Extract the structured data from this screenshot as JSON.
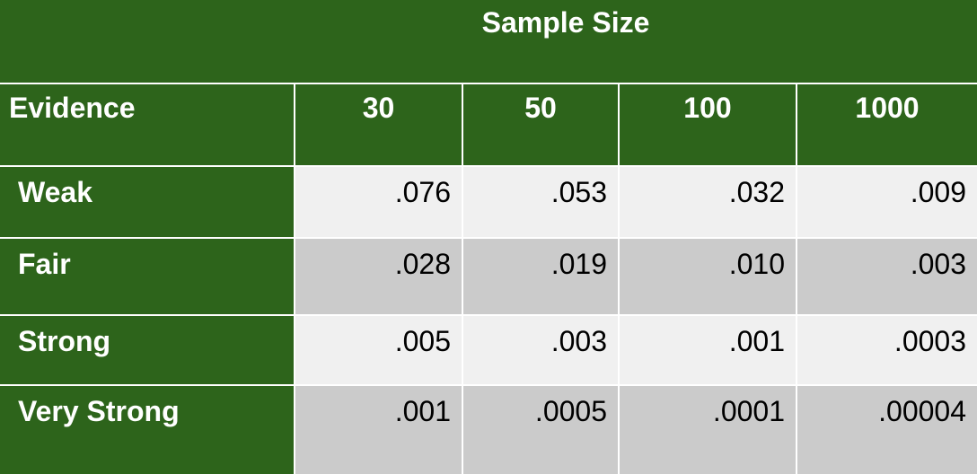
{
  "table": {
    "title": "Sample Size",
    "row_header": "Evidence",
    "columns": [
      "30",
      "50",
      "100",
      "1000"
    ],
    "rows": [
      {
        "label": "Weak",
        "values": [
          ".076",
          ".053",
          ".032",
          ".009"
        ]
      },
      {
        "label": "Fair",
        "values": [
          ".028",
          ".019",
          ".010",
          ".003"
        ]
      },
      {
        "label": "Strong",
        "values": [
          ".005",
          ".003",
          ".001",
          ".0003"
        ]
      },
      {
        "label": "Very Strong",
        "values": [
          ".001",
          ".0005",
          ".0001",
          ".00004"
        ]
      }
    ]
  },
  "colors": {
    "header_green": "#2d641b",
    "row_light": "#f0f0f0",
    "row_dark": "#cbcbcb",
    "header_text": "#ffffff"
  }
}
